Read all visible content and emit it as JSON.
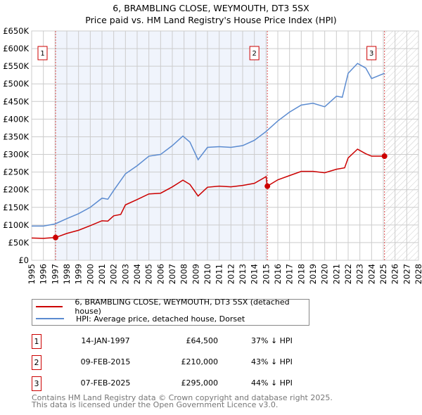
{
  "chart_data": {
    "type": "line",
    "title": "6, BRAMBLING CLOSE, WEYMOUTH, DT3 5SX",
    "subtitle": "Price paid vs. HM Land Registry's House Price Index (HPI)",
    "xlim": [
      1995,
      2028
    ],
    "ylim": [
      0,
      650000
    ],
    "y_ticks": [
      "£0",
      "£50K",
      "£100K",
      "£150K",
      "£200K",
      "£250K",
      "£300K",
      "£350K",
      "£400K",
      "£450K",
      "£500K",
      "£550K",
      "£600K",
      "£650K"
    ],
    "x_ticks": [
      "1995",
      "1996",
      "1997",
      "1998",
      "1999",
      "2000",
      "2001",
      "2002",
      "2003",
      "2004",
      "2005",
      "2006",
      "2007",
      "2008",
      "2009",
      "2010",
      "2011",
      "2012",
      "2013",
      "2014",
      "2015",
      "2016",
      "2017",
      "2018",
      "2019",
      "2020",
      "2021",
      "2022",
      "2023",
      "2024",
      "2025",
      "2026",
      "2027",
      "2028"
    ],
    "series": [
      {
        "name": "6, BRAMBLING CLOSE, WEYMOUTH, DT3 5SX (detached house)",
        "color": "#cc0000",
        "x": [
          1995,
          1996,
          1997.04,
          1998,
          1999,
          2000,
          2001,
          2001.5,
          2002,
          2002.6,
          2003,
          2004,
          2005,
          2006,
          2007,
          2007.9,
          2008.5,
          2009.2,
          2010,
          2011,
          2012,
          2013,
          2014,
          2015.0,
          2015.1,
          2016,
          2017,
          2018,
          2019,
          2020,
          2021,
          2021.7,
          2022,
          2022.8,
          2023.5,
          2024,
          2025.1
        ],
        "values": [
          63000,
          62000,
          64500,
          76000,
          85000,
          98000,
          112000,
          111000,
          126000,
          130000,
          157000,
          172000,
          188000,
          190000,
          208000,
          227000,
          215000,
          182000,
          207000,
          210000,
          208000,
          212000,
          218000,
          237000,
          210000,
          228000,
          240000,
          252000,
          252000,
          248000,
          258000,
          262000,
          290000,
          315000,
          302000,
          295000,
          295000
        ]
      },
      {
        "name": "HPI: Average price, detached house, Dorset",
        "color": "#5b8bd0",
        "x": [
          1995,
          1996,
          1997,
          1998,
          1999,
          2000,
          2001,
          2001.5,
          2002,
          2003,
          2004,
          2005,
          2006,
          2007,
          2007.9,
          2008.5,
          2009.2,
          2010,
          2011,
          2012,
          2013,
          2014,
          2015,
          2016,
          2017,
          2018,
          2019,
          2020,
          2021,
          2021.5,
          2022,
          2022.8,
          2023.5,
          2024,
          2025.1
        ],
        "values": [
          97000,
          97000,
          103000,
          118000,
          132000,
          150000,
          176000,
          173000,
          198000,
          245000,
          268000,
          295000,
          300000,
          325000,
          352000,
          335000,
          285000,
          320000,
          322000,
          320000,
          325000,
          340000,
          365000,
          395000,
          420000,
          440000,
          445000,
          435000,
          465000,
          462000,
          530000,
          558000,
          545000,
          515000,
          530000
        ]
      }
    ],
    "sales": [
      {
        "label": "1",
        "x": 1997.04,
        "value": 64500,
        "date": "14-JAN-1997",
        "price": "£64,500",
        "hpi": "37% ↓ HPI"
      },
      {
        "label": "2",
        "x": 2015.11,
        "value": 210000,
        "date": "09-FEB-2015",
        "price": "£210,000",
        "hpi": "43% ↓ HPI"
      },
      {
        "label": "3",
        "x": 2025.1,
        "value": 295000,
        "date": "07-FEB-2025",
        "price": "£295,000",
        "hpi": "44% ↓ HPI"
      }
    ],
    "legend": "bottom"
  },
  "footer": [
    "Contains HM Land Registry data © Crown copyright and database right 2025.",
    "This data is licensed under the Open Government Licence v3.0."
  ]
}
